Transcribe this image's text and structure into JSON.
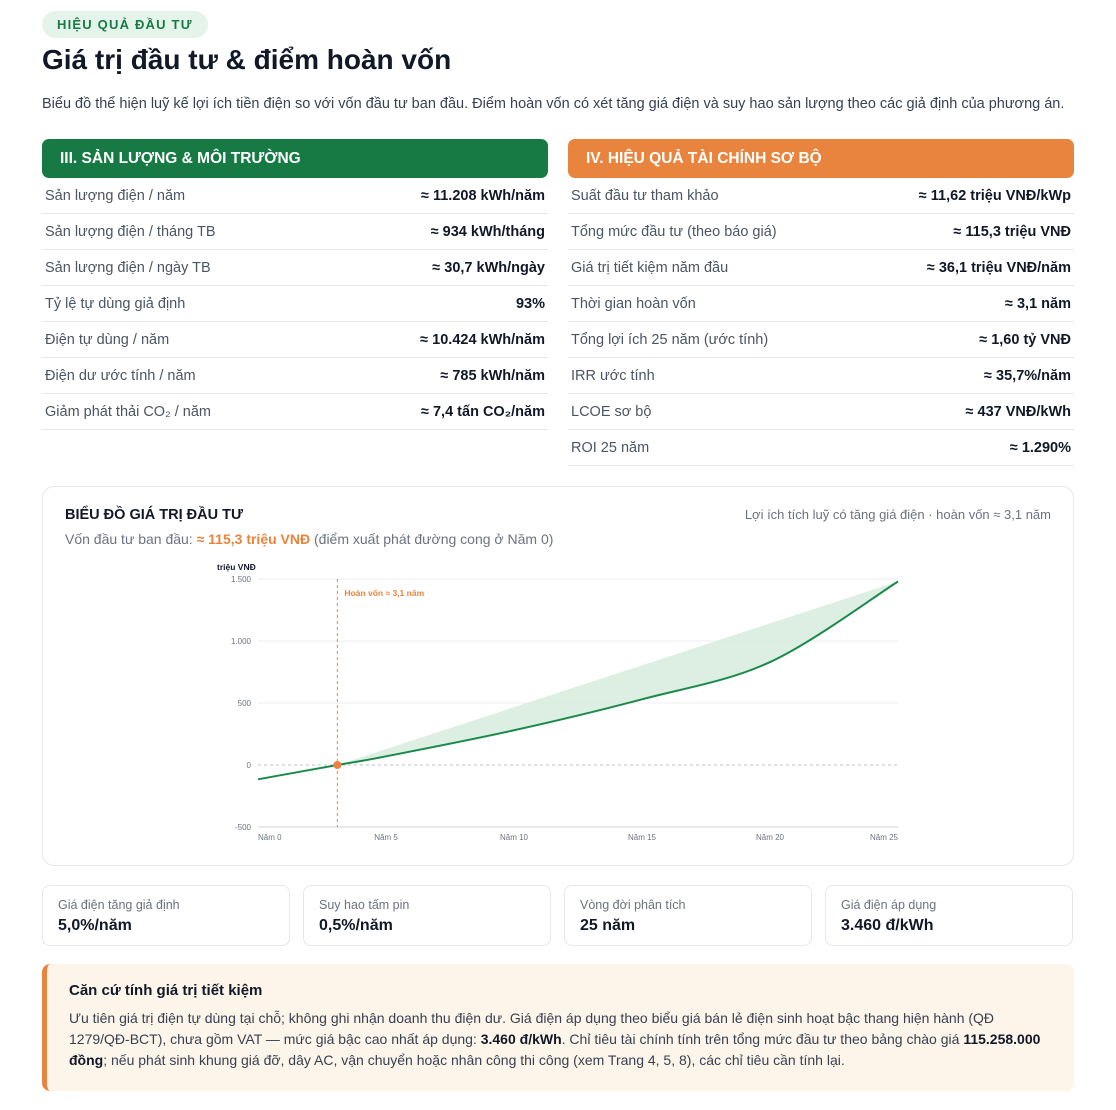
{
  "header": {
    "badge": "HIỆU QUẢ ĐẦU TƯ",
    "title": "Giá trị đầu tư & điểm hoàn vốn",
    "description": "Biểu đồ thể hiện luỹ kế lợi ích tiền điện so với vốn đầu tư ban đầu. Điểm hoàn vốn có xét tăng giá điện và suy hao sản lượng theo các giả định của phương án."
  },
  "production": {
    "title": "III. SẢN LƯỢNG & MÔI TRƯỜNG",
    "color": "#177a44",
    "rows": [
      {
        "label": "Sản lượng điện / năm",
        "value": "≈ 11.208 kWh/năm"
      },
      {
        "label": "Sản lượng điện / tháng TB",
        "value": "≈ 934 kWh/tháng"
      },
      {
        "label": "Sản lượng điện / ngày TB",
        "value": "≈ 30,7 kWh/ngày"
      },
      {
        "label": "Tỷ lệ tự dùng giả định",
        "value": "93%"
      },
      {
        "label": "Điện tự dùng / năm",
        "value": "≈ 10.424 kWh/năm"
      },
      {
        "label": "Điện dư ước tính / năm",
        "value": "≈ 785 kWh/năm"
      },
      {
        "label": "Giảm phát thải CO₂ / năm",
        "value": "≈ 7,4 tấn CO₂/năm"
      }
    ]
  },
  "finance": {
    "title": "IV. HIỆU QUẢ TÀI CHÍNH SƠ BỘ",
    "color": "#e9843f",
    "rows": [
      {
        "label": "Suất đầu tư tham khảo",
        "value": "≈ 11,62 triệu VNĐ/kWp"
      },
      {
        "label": "Tổng mức đầu tư (theo báo giá)",
        "value": "≈ 115,3 triệu VNĐ"
      },
      {
        "label": "Giá trị tiết kiệm năm đầu",
        "value": "≈ 36,1 triệu VNĐ/năm"
      },
      {
        "label": "Thời gian hoàn vốn",
        "value": "≈ 3,1 năm"
      },
      {
        "label": "Tổng lợi ích 25 năm (ước tính)",
        "value": "≈ 1,60 tỷ VNĐ"
      },
      {
        "label": "IRR ước tính",
        "value": "≈ 35,7%/năm"
      },
      {
        "label": "LCOE sơ bộ",
        "value": "≈ 437 VNĐ/kWh"
      },
      {
        "label": "ROI 25 năm",
        "value": "≈ 1.290%"
      }
    ]
  },
  "chart_card": {
    "title": "BIỂU ĐỒ GIÁ TRỊ ĐẦU TƯ",
    "note": "Lợi ích tích luỹ có tăng giá điện · hoàn vốn ≈ 3,1 năm",
    "sub_prefix": "Vốn đầu tư ban đầu: ",
    "sub_highlight": "≈ 115,3 triệu VNĐ",
    "sub_suffix": " (điểm xuất phát đường cong ở Năm 0)"
  },
  "chart_data": {
    "type": "line",
    "ylabel": "triệu VNĐ",
    "ylim": [
      -500,
      1500
    ],
    "yticks": [
      -500,
      0,
      500,
      1000,
      1500
    ],
    "ytick_labels": [
      "-500",
      "0",
      "500",
      "1.000",
      "1.500"
    ],
    "xlim": [
      0,
      25
    ],
    "xticks": [
      0,
      5,
      10,
      15,
      20,
      25
    ],
    "xtick_labels": [
      "Năm 0",
      "Năm 5",
      "Năm 10",
      "Năm 15",
      "Năm 20",
      "Năm 25"
    ],
    "x": [
      0,
      3.1,
      5,
      10,
      15,
      20,
      25
    ],
    "y": [
      -115.3,
      0,
      70,
      280,
      530,
      830,
      1480
    ],
    "payback_year": 3.1,
    "payback_label": "Hoàn vốn ≈ 3,1 năm",
    "grid": true,
    "colors": {
      "line": "#1a8a4a",
      "area": "#d6ecdd",
      "payback": "#e9843f"
    }
  },
  "assumptions": [
    {
      "key": "Giá điện tăng giả định",
      "value": "5,0%/năm"
    },
    {
      "key": "Suy hao tấm pin",
      "value": "0,5%/năm"
    },
    {
      "key": "Vòng đời phân tích",
      "value": "25 năm"
    },
    {
      "key": "Giá điện áp dụng",
      "value": "3.460 đ/kWh"
    }
  ],
  "note": {
    "title": "Căn cứ tính giá trị tiết kiệm",
    "part1": "Ưu tiên giá trị điện tự dùng tại chỗ; không ghi nhận doanh thu điện dư. Giá điện áp dụng theo biểu giá bán lẻ điện sinh hoạt bậc thang hiện hành (QĐ 1279/QĐ-BCT), chưa gồm VAT — mức giá bậc cao nhất áp dụng: ",
    "bold1": "3.460 đ/kWh",
    "part2": ". Chỉ tiêu tài chính tính trên tổng mức đầu tư theo bảng chào giá ",
    "bold2": "115.258.000 đồng",
    "part3": "; nếu phát sinh khung giá đỡ, dây AC, vận chuyển hoặc nhân công thi công (xem Trang 4, 5, 8), các chỉ tiêu cần tính lại."
  }
}
